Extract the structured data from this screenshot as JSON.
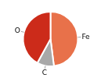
{
  "chart_data": {
    "type": "pie",
    "categories": [
      "Fe",
      "C",
      "O"
    ],
    "values": [
      48.0,
      10.0,
      42.0
    ],
    "colors": [
      "#E8714A",
      "#A8A8A8",
      "#CC2B1A"
    ],
    "legend": false
  }
}
